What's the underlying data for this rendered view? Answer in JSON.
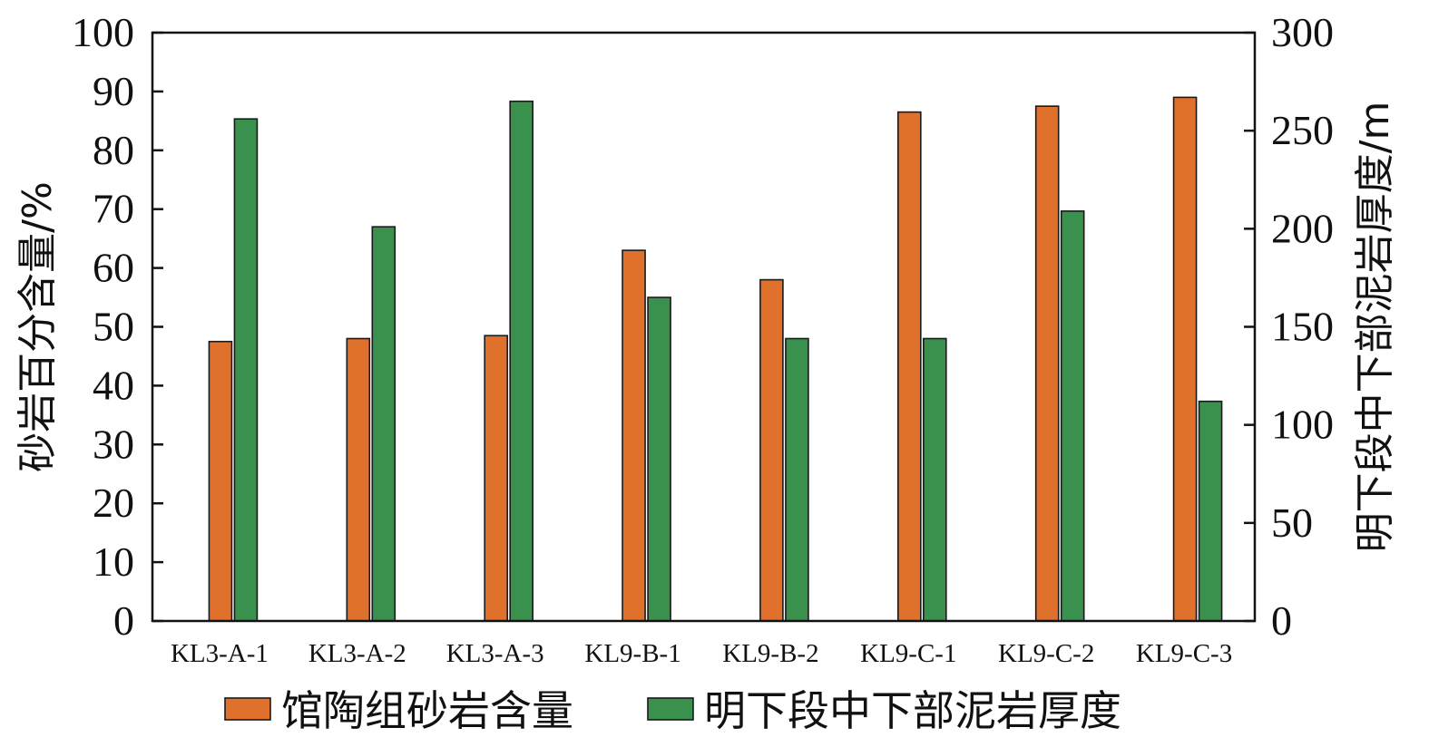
{
  "chart_data": {
    "type": "bar",
    "categories": [
      "KL3-A-1",
      "KL3-A-2",
      "KL3-A-3",
      "KL9-B-1",
      "KL9-B-2",
      "KL9-C-1",
      "KL9-C-2",
      "KL9-C-3"
    ],
    "series": [
      {
        "name": "馆陶组砂岩含量",
        "axis": "left",
        "color": "#e0712c",
        "values": [
          47.5,
          48.0,
          48.5,
          63.0,
          58.0,
          86.5,
          87.5,
          89.0
        ]
      },
      {
        "name": "明下段中下部泥岩厚度",
        "axis": "right",
        "color": "#3a914e",
        "values": [
          256,
          201,
          265,
          165,
          144,
          144,
          209,
          112
        ]
      }
    ],
    "ylabel": "砂岩百分含量/%",
    "ylabel_right": "明下段中下部泥岩厚度/m",
    "ylim": [
      0,
      100
    ],
    "ylim_right": [
      0,
      300
    ],
    "yticks": [
      0,
      10,
      20,
      30,
      40,
      50,
      60,
      70,
      80,
      90,
      100
    ],
    "yticks_right": [
      0,
      50,
      100,
      150,
      200,
      250,
      300
    ],
    "legend_position": "bottom",
    "grid": false
  }
}
